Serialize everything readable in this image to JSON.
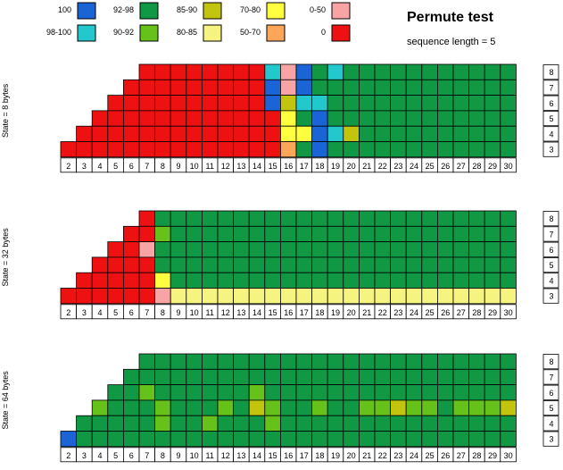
{
  "title": "Permute test",
  "subtitle": "sequence length = 5",
  "legend": [
    {
      "label": "100",
      "color": "#1a64d6"
    },
    {
      "label": "98-100",
      "color": "#22c8cc"
    },
    {
      "label": "92-98",
      "color": "#119844"
    },
    {
      "label": "90-92",
      "color": "#66c21a"
    },
    {
      "label": "85-90",
      "color": "#c2c40e"
    },
    {
      "label": "80-85",
      "color": "#f6f480"
    },
    {
      "label": "70-80",
      "color": "#ffff40"
    },
    {
      "label": "50-70",
      "color": "#fca65a"
    },
    {
      "label": "0-50",
      "color": "#f8a4a4"
    },
    {
      "label": "0",
      "color": "#ee1111"
    }
  ],
  "chart_data": [
    {
      "type": "heatmap",
      "ylabel": "State = 8 bytes",
      "x": [
        "2",
        "3",
        "4",
        "5",
        "6",
        "7",
        "8",
        "9",
        "10",
        "11",
        "12",
        "13",
        "14",
        "15",
        "16",
        "17",
        "18",
        "19",
        "20",
        "21",
        "22",
        "23",
        "24",
        "25",
        "26",
        "27",
        "28",
        "29",
        "30"
      ],
      "y": [
        "8",
        "7",
        "6",
        "5",
        "4",
        "3"
      ],
      "cells": [
        [
          "",
          "",
          "",
          "",
          "",
          "0",
          "0",
          "0",
          "0",
          "0",
          "0",
          "0",
          "0",
          "98-100",
          "0-50",
          "100",
          "92-98",
          "98-100",
          "92-98",
          "92-98",
          "92-98",
          "92-98",
          "92-98",
          "92-98",
          "92-98",
          "92-98",
          "92-98",
          "92-98",
          "92-98"
        ],
        [
          "",
          "",
          "",
          "",
          "0",
          "0",
          "0",
          "0",
          "0",
          "0",
          "0",
          "0",
          "0",
          "100",
          "0-50",
          "100",
          "92-98",
          "92-98",
          "92-98",
          "92-98",
          "92-98",
          "92-98",
          "92-98",
          "92-98",
          "92-98",
          "92-98",
          "92-98",
          "92-98",
          "92-98"
        ],
        [
          "",
          "",
          "",
          "0",
          "0",
          "0",
          "0",
          "0",
          "0",
          "0",
          "0",
          "0",
          "0",
          "100",
          "85-90",
          "98-100",
          "98-100",
          "92-98",
          "92-98",
          "92-98",
          "92-98",
          "92-98",
          "92-98",
          "92-98",
          "92-98",
          "92-98",
          "92-98",
          "92-98",
          "92-98"
        ],
        [
          "",
          "",
          "0",
          "0",
          "0",
          "0",
          "0",
          "0",
          "0",
          "0",
          "0",
          "0",
          "0",
          "0",
          "70-80",
          "92-98",
          "100",
          "92-98",
          "92-98",
          "92-98",
          "92-98",
          "92-98",
          "92-98",
          "92-98",
          "92-98",
          "92-98",
          "92-98",
          "92-98",
          "92-98"
        ],
        [
          "",
          "0",
          "0",
          "0",
          "0",
          "0",
          "0",
          "0",
          "0",
          "0",
          "0",
          "0",
          "0",
          "0",
          "70-80",
          "70-80",
          "100",
          "98-100",
          "85-90",
          "92-98",
          "92-98",
          "92-98",
          "92-98",
          "92-98",
          "92-98",
          "92-98",
          "92-98",
          "92-98",
          "92-98"
        ],
        [
          "0",
          "0",
          "0",
          "0",
          "0",
          "0",
          "0",
          "0",
          "0",
          "0",
          "0",
          "0",
          "0",
          "0",
          "50-70",
          "92-98",
          "100",
          "92-98",
          "92-98",
          "92-98",
          "92-98",
          "92-98",
          "92-98",
          "92-98",
          "92-98",
          "92-98",
          "92-98",
          "92-98",
          "92-98"
        ]
      ]
    },
    {
      "type": "heatmap",
      "ylabel": "State = 32 bytes",
      "x": [
        "2",
        "3",
        "4",
        "5",
        "6",
        "7",
        "8",
        "9",
        "10",
        "11",
        "12",
        "13",
        "14",
        "15",
        "16",
        "17",
        "18",
        "19",
        "20",
        "21",
        "22",
        "23",
        "24",
        "25",
        "26",
        "27",
        "28",
        "29",
        "30"
      ],
      "y": [
        "8",
        "7",
        "6",
        "5",
        "4",
        "3"
      ],
      "cells": [
        [
          "",
          "",
          "",
          "",
          "",
          "0",
          "92-98",
          "92-98",
          "92-98",
          "92-98",
          "92-98",
          "92-98",
          "92-98",
          "92-98",
          "92-98",
          "92-98",
          "92-98",
          "92-98",
          "92-98",
          "92-98",
          "92-98",
          "92-98",
          "92-98",
          "92-98",
          "92-98",
          "92-98",
          "92-98",
          "92-98",
          "92-98"
        ],
        [
          "",
          "",
          "",
          "",
          "0",
          "0",
          "90-92",
          "92-98",
          "92-98",
          "92-98",
          "92-98",
          "92-98",
          "92-98",
          "92-98",
          "92-98",
          "92-98",
          "92-98",
          "92-98",
          "92-98",
          "92-98",
          "92-98",
          "92-98",
          "92-98",
          "92-98",
          "92-98",
          "92-98",
          "92-98",
          "92-98",
          "92-98"
        ],
        [
          "",
          "",
          "",
          "0",
          "0",
          "0-50",
          "92-98",
          "92-98",
          "92-98",
          "92-98",
          "92-98",
          "92-98",
          "92-98",
          "92-98",
          "92-98",
          "92-98",
          "92-98",
          "92-98",
          "92-98",
          "92-98",
          "92-98",
          "92-98",
          "92-98",
          "92-98",
          "92-98",
          "92-98",
          "92-98",
          "92-98",
          "92-98"
        ],
        [
          "",
          "",
          "0",
          "0",
          "0",
          "0",
          "92-98",
          "92-98",
          "92-98",
          "92-98",
          "92-98",
          "92-98",
          "92-98",
          "92-98",
          "92-98",
          "92-98",
          "92-98",
          "92-98",
          "92-98",
          "92-98",
          "92-98",
          "92-98",
          "92-98",
          "92-98",
          "92-98",
          "92-98",
          "92-98",
          "92-98",
          "92-98"
        ],
        [
          "",
          "0",
          "0",
          "0",
          "0",
          "0",
          "70-80",
          "92-98",
          "92-98",
          "92-98",
          "92-98",
          "92-98",
          "92-98",
          "92-98",
          "92-98",
          "92-98",
          "92-98",
          "92-98",
          "92-98",
          "92-98",
          "92-98",
          "92-98",
          "92-98",
          "92-98",
          "92-98",
          "92-98",
          "92-98",
          "92-98",
          "92-98"
        ],
        [
          "0",
          "0",
          "0",
          "0",
          "0",
          "0",
          "0-50",
          "80-85",
          "80-85",
          "80-85",
          "80-85",
          "80-85",
          "80-85",
          "80-85",
          "80-85",
          "80-85",
          "80-85",
          "80-85",
          "80-85",
          "80-85",
          "80-85",
          "80-85",
          "80-85",
          "80-85",
          "80-85",
          "80-85",
          "80-85",
          "80-85",
          "80-85"
        ]
      ]
    },
    {
      "type": "heatmap",
      "ylabel": "State = 64 bytes",
      "x": [
        "2",
        "3",
        "4",
        "5",
        "6",
        "7",
        "8",
        "9",
        "10",
        "11",
        "12",
        "13",
        "14",
        "15",
        "16",
        "17",
        "18",
        "19",
        "20",
        "21",
        "22",
        "23",
        "24",
        "25",
        "26",
        "27",
        "28",
        "29",
        "30"
      ],
      "y": [
        "8",
        "7",
        "6",
        "5",
        "4",
        "3"
      ],
      "cells": [
        [
          "",
          "",
          "",
          "",
          "",
          "92-98",
          "92-98",
          "92-98",
          "92-98",
          "92-98",
          "92-98",
          "92-98",
          "92-98",
          "92-98",
          "92-98",
          "92-98",
          "92-98",
          "92-98",
          "92-98",
          "92-98",
          "92-98",
          "92-98",
          "92-98",
          "92-98",
          "92-98",
          "92-98",
          "92-98",
          "92-98",
          "92-98"
        ],
        [
          "",
          "",
          "",
          "",
          "92-98",
          "92-98",
          "92-98",
          "92-98",
          "92-98",
          "92-98",
          "92-98",
          "92-98",
          "92-98",
          "92-98",
          "92-98",
          "92-98",
          "92-98",
          "92-98",
          "92-98",
          "92-98",
          "92-98",
          "92-98",
          "92-98",
          "92-98",
          "92-98",
          "92-98",
          "92-98",
          "92-98",
          "92-98"
        ],
        [
          "",
          "",
          "",
          "92-98",
          "92-98",
          "90-92",
          "92-98",
          "92-98",
          "92-98",
          "92-98",
          "92-98",
          "92-98",
          "90-92",
          "92-98",
          "92-98",
          "92-98",
          "92-98",
          "92-98",
          "92-98",
          "92-98",
          "92-98",
          "92-98",
          "92-98",
          "92-98",
          "92-98",
          "92-98",
          "92-98",
          "92-98",
          "92-98"
        ],
        [
          "",
          "",
          "90-92",
          "92-98",
          "92-98",
          "92-98",
          "90-92",
          "92-98",
          "92-98",
          "92-98",
          "90-92",
          "92-98",
          "85-90",
          "90-92",
          "92-98",
          "92-98",
          "90-92",
          "92-98",
          "92-98",
          "90-92",
          "90-92",
          "85-90",
          "90-92",
          "90-92",
          "92-98",
          "90-92",
          "90-92",
          "90-92",
          "85-90"
        ],
        [
          "",
          "92-98",
          "92-98",
          "92-98",
          "92-98",
          "92-98",
          "90-92",
          "92-98",
          "92-98",
          "90-92",
          "92-98",
          "92-98",
          "92-98",
          "90-92",
          "92-98",
          "92-98",
          "92-98",
          "92-98",
          "92-98",
          "92-98",
          "92-98",
          "92-98",
          "92-98",
          "92-98",
          "92-98",
          "92-98",
          "92-98",
          "92-98",
          "92-98"
        ],
        [
          "100",
          "92-98",
          "92-98",
          "92-98",
          "92-98",
          "92-98",
          "92-98",
          "92-98",
          "92-98",
          "92-98",
          "92-98",
          "92-98",
          "92-98",
          "92-98",
          "92-98",
          "92-98",
          "92-98",
          "92-98",
          "92-98",
          "92-98",
          "92-98",
          "92-98",
          "92-98",
          "92-98",
          "92-98",
          "92-98",
          "92-98",
          "92-98",
          "92-98"
        ]
      ]
    }
  ]
}
